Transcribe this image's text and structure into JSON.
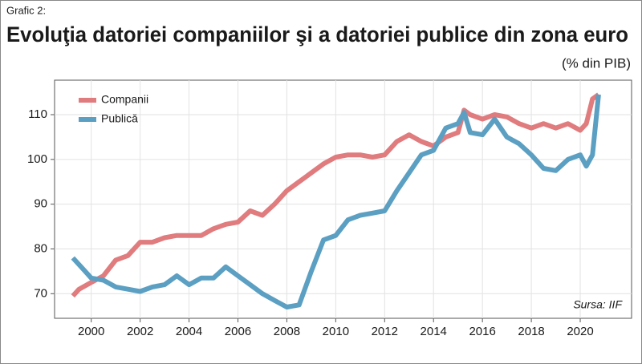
{
  "chart_data": {
    "type": "line",
    "label": "Grafic 2:",
    "title": "Evoluţia datoriei companiilor şi a datoriei publice din zona euro",
    "subtitle": "(% din PIB)",
    "annotation": "Sursa: IIF",
    "xlim": [
      1998.5,
      2022.1
    ],
    "xticks": [
      2000,
      2002,
      2004,
      2006,
      2008,
      2010,
      2012,
      2014,
      2016,
      2018,
      2020
    ],
    "ylim": [
      64.5,
      117.7
    ],
    "yticks": [
      70,
      80,
      90,
      100,
      110
    ],
    "grid": true,
    "legend": "upper left",
    "series": [
      {
        "name": "Companii",
        "color": "#e07b7e",
        "x": [
          1999.25,
          1999.5,
          2000,
          2000.5,
          2001,
          2001.5,
          2002,
          2002.5,
          2003,
          2003.5,
          2004,
          2004.5,
          2005,
          2005.5,
          2006,
          2006.5,
          2007,
          2007.5,
          2008,
          2008.5,
          2009,
          2009.5,
          2010,
          2010.5,
          2011,
          2011.5,
          2012,
          2012.5,
          2013,
          2013.5,
          2014,
          2014.5,
          2015,
          2015.25,
          2015.5,
          2016,
          2016.5,
          2017,
          2017.5,
          2018,
          2018.5,
          2019,
          2019.5,
          2020,
          2020.25,
          2020.5,
          2020.75
        ],
        "values": [
          69.5,
          71,
          72.5,
          74,
          77.5,
          78.5,
          81.5,
          81.5,
          82.5,
          83,
          83,
          83,
          84.5,
          85.5,
          86,
          88.5,
          87.5,
          90,
          93,
          95,
          97,
          99,
          100.5,
          101,
          101,
          100.5,
          101,
          104,
          105.5,
          104,
          103,
          105,
          106,
          111,
          110,
          109,
          110,
          109.5,
          108,
          107,
          108,
          107,
          108,
          106.5,
          108,
          113.5,
          114.5
        ]
      },
      {
        "name": "Publică",
        "color": "#5b9fc2",
        "x": [
          1999.25,
          1999.75,
          2000,
          2000.5,
          2001,
          2001.5,
          2002,
          2002.5,
          2003,
          2003.5,
          2004,
          2004.5,
          2005,
          2005.5,
          2006,
          2006.5,
          2007,
          2007.5,
          2008,
          2008.5,
          2009,
          2009.5,
          2010,
          2010.5,
          2011,
          2011.5,
          2012,
          2012.5,
          2013,
          2013.5,
          2014,
          2014.5,
          2015,
          2015.25,
          2015.5,
          2016,
          2016.5,
          2017,
          2017.5,
          2018,
          2018.5,
          2019,
          2019.5,
          2020,
          2020.25,
          2020.5,
          2020.75
        ],
        "values": [
          78,
          75,
          73.5,
          73,
          71.5,
          71,
          70.5,
          71.5,
          72,
          74,
          72,
          73.5,
          73.5,
          76,
          74,
          72,
          70,
          68.5,
          67,
          67.5,
          75,
          82,
          83,
          86.5,
          87.5,
          88,
          88.5,
          93,
          97,
          101,
          102,
          107,
          108,
          110.5,
          106,
          105.5,
          109,
          105,
          103.5,
          101,
          98,
          97.5,
          100,
          101,
          98.5,
          101,
          114.5
        ]
      }
    ]
  }
}
